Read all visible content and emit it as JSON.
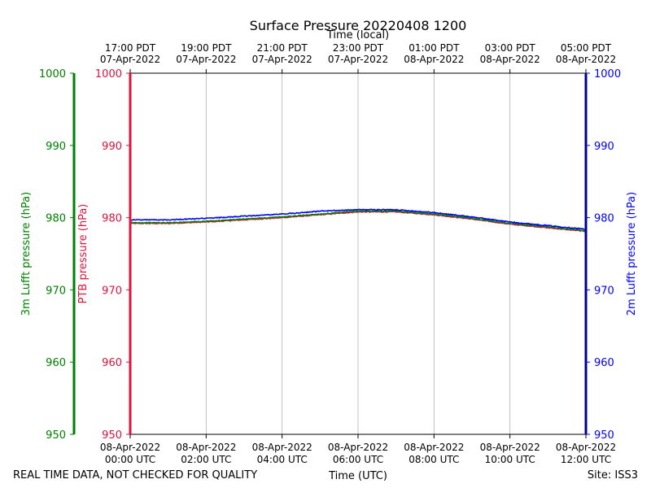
{
  "chart_data": {
    "type": "line",
    "title": "Surface Pressure 20220408 1200",
    "top_xlabel": "Time (local)",
    "bottom_xlabel": "Time (UTC)",
    "x_unit": "hours since 08-Apr-2022 00:00 UTC",
    "xlim": [
      0,
      12
    ],
    "ylim": [
      950,
      1000
    ],
    "y_ticks": [
      950,
      960,
      970,
      980,
      990,
      1000
    ],
    "y_tick_labels": [
      "950",
      "960",
      "970",
      "980",
      "990",
      "1000"
    ],
    "x_ticks": [
      0,
      2,
      4,
      6,
      8,
      10,
      12
    ],
    "bottom_tick_labels": [
      {
        "date": "08-Apr-2022",
        "time": "00:00 UTC"
      },
      {
        "date": "08-Apr-2022",
        "time": "02:00 UTC"
      },
      {
        "date": "08-Apr-2022",
        "time": "04:00 UTC"
      },
      {
        "date": "08-Apr-2022",
        "time": "06:00 UTC"
      },
      {
        "date": "08-Apr-2022",
        "time": "08:00 UTC"
      },
      {
        "date": "08-Apr-2022",
        "time": "10:00 UTC"
      },
      {
        "date": "08-Apr-2022",
        "time": "12:00 UTC"
      }
    ],
    "top_tick_labels": [
      {
        "time": "17:00 PDT",
        "date": "07-Apr-2022"
      },
      {
        "time": "19:00 PDT",
        "date": "07-Apr-2022"
      },
      {
        "time": "21:00 PDT",
        "date": "07-Apr-2022"
      },
      {
        "time": "23:00 PDT",
        "date": "07-Apr-2022"
      },
      {
        "time": "01:00 PDT",
        "date": "08-Apr-2022"
      },
      {
        "time": "03:00 PDT",
        "date": "08-Apr-2022"
      },
      {
        "time": "05:00 PDT",
        "date": "08-Apr-2022"
      }
    ],
    "axes": [
      {
        "id": "lufft3m",
        "label": "3m Lufft pressure (hPa)",
        "color": "#008000",
        "side": "far-left"
      },
      {
        "id": "ptb",
        "label": "PTB pressure (hPa)",
        "color": "#dc143c",
        "side": "left"
      },
      {
        "id": "lufft2m",
        "label": "2m Lufft pressure (hPa)",
        "color": "#0000ff",
        "side": "right"
      }
    ],
    "grid": "vertical",
    "series": [
      {
        "name": "PTB pressure",
        "color": "#dc143c",
        "x": [
          0,
          1,
          2,
          3,
          4,
          5,
          6,
          7,
          8,
          9,
          10,
          11,
          12
        ],
        "values": [
          979.2,
          979.2,
          979.4,
          979.7,
          980.0,
          980.4,
          980.8,
          980.8,
          980.4,
          979.8,
          979.1,
          978.6,
          978.1
        ]
      },
      {
        "name": "3m Lufft pressure",
        "color": "#008000",
        "x": [
          0,
          1,
          2,
          3,
          4,
          5,
          6,
          7,
          8,
          9,
          10,
          11,
          12
        ],
        "values": [
          979.3,
          979.3,
          979.5,
          979.8,
          980.1,
          980.5,
          980.9,
          980.9,
          980.5,
          979.9,
          979.2,
          978.7,
          978.2
        ]
      },
      {
        "name": "2m Lufft pressure",
        "color": "#0000ff",
        "x": [
          0,
          1,
          2,
          3,
          4,
          5,
          6,
          7,
          8,
          9,
          10,
          11,
          12
        ],
        "values": [
          979.7,
          979.7,
          979.9,
          980.2,
          980.5,
          980.9,
          981.1,
          981.1,
          980.7,
          980.1,
          979.4,
          978.9,
          978.4
        ]
      }
    ]
  },
  "footer": {
    "note": "REAL TIME DATA, NOT CHECKED FOR QUALITY",
    "site": "Site: ISS3"
  }
}
